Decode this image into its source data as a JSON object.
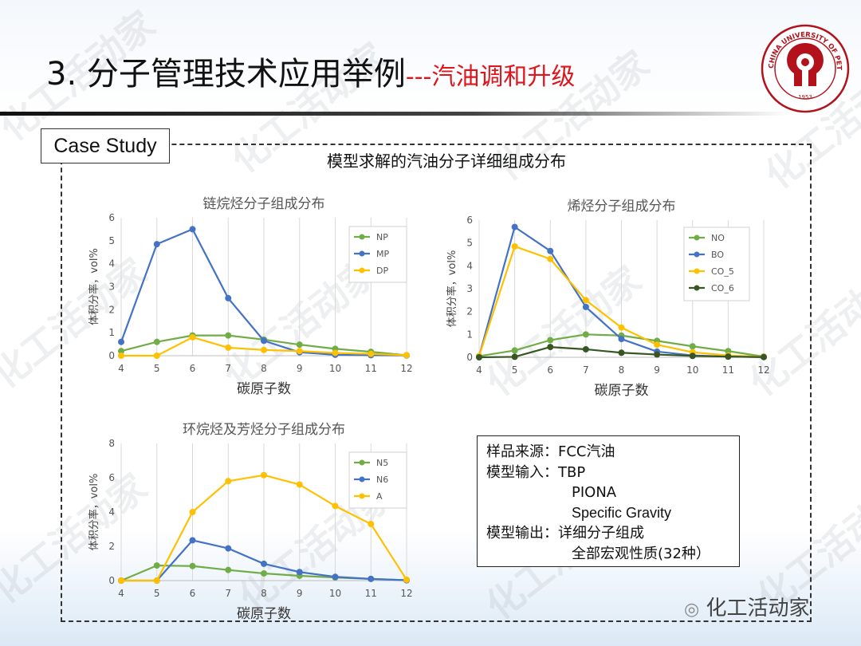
{
  "slide": {
    "title_main": "3. 分子管理技术应用举例",
    "title_sub": "---汽油调和升级",
    "case_label": "Case Study",
    "section_title": "模型求解的汽油分子详细组成分布",
    "watermark_text": "化工活动家",
    "footer_mark": "化工活动家",
    "logo_text": "CHINA UNIVERSITY OF PETROLEUM",
    "logo_year": "1953"
  },
  "info_box": {
    "lines": [
      "样品来源：FCC汽油",
      "模型输入：TBP",
      "PIONA",
      "Specific Gravity",
      "模型输出：详细分子组成",
      "全部宏观性质(32种）"
    ]
  },
  "chart_data": [
    {
      "type": "line",
      "title": "链烷烃分子组成分布",
      "xlabel": "碳原子数",
      "ylabel": "体积分率，vol%",
      "x": [
        4,
        5,
        6,
        7,
        8,
        9,
        10,
        11,
        12
      ],
      "xlim": [
        4,
        12
      ],
      "ylim": [
        0,
        6
      ],
      "yticks": [
        0,
        1,
        2,
        3,
        4,
        5,
        6
      ],
      "grid": "vertical",
      "legend": "right",
      "series": [
        {
          "name": "NP",
          "color": "#70ad47",
          "values": [
            0.2,
            0.6,
            0.88,
            0.88,
            0.7,
            0.48,
            0.3,
            0.17,
            0.02
          ]
        },
        {
          "name": "MP",
          "color": "#4472c4",
          "values": [
            0.6,
            4.85,
            5.5,
            2.5,
            0.65,
            0.15,
            0.04,
            0.02,
            0.01
          ]
        },
        {
          "name": "DP",
          "color": "#ffc000",
          "values": [
            0.0,
            0.0,
            0.8,
            0.35,
            0.25,
            0.2,
            0.12,
            0.08,
            0.02
          ]
        }
      ]
    },
    {
      "type": "line",
      "title": "烯烃分子组成分布",
      "xlabel": "碳原子数",
      "ylabel": "体积分率，vol%",
      "x": [
        4,
        5,
        6,
        7,
        8,
        9,
        10,
        11,
        12
      ],
      "xlim": [
        4,
        12
      ],
      "ylim": [
        0,
        6
      ],
      "yticks": [
        0,
        1,
        2,
        3,
        4,
        5,
        6
      ],
      "grid": "vertical",
      "legend": "right",
      "series": [
        {
          "name": "NO",
          "color": "#70ad47",
          "values": [
            0.05,
            0.3,
            0.75,
            1.0,
            0.95,
            0.72,
            0.48,
            0.27,
            0.03
          ]
        },
        {
          "name": "BO",
          "color": "#4472c4",
          "values": [
            0.05,
            5.7,
            4.65,
            2.2,
            0.8,
            0.25,
            0.08,
            0.03,
            0.01
          ]
        },
        {
          "name": "CO_5",
          "color": "#ffc000",
          "values": [
            0.05,
            4.85,
            4.3,
            2.5,
            1.3,
            0.55,
            0.22,
            0.08,
            0.02
          ]
        },
        {
          "name": "CO_6",
          "color": "#375623",
          "values": [
            0.0,
            0.02,
            0.45,
            0.35,
            0.2,
            0.12,
            0.06,
            0.03,
            0.01
          ]
        }
      ]
    },
    {
      "type": "line",
      "title": "环烷烃及芳烃分子组成分布",
      "xlabel": "碳原子数",
      "ylabel": "体积分率，vol%",
      "x": [
        4,
        5,
        6,
        7,
        8,
        9,
        10,
        11,
        12
      ],
      "xlim": [
        4,
        12
      ],
      "ylim": [
        0,
        8
      ],
      "yticks": [
        0,
        2,
        4,
        6,
        8
      ],
      "grid": "vertical",
      "legend": "right",
      "series": [
        {
          "name": "N5",
          "color": "#70ad47",
          "values": [
            0.0,
            0.88,
            0.85,
            0.62,
            0.42,
            0.28,
            0.18,
            0.1,
            0.02
          ]
        },
        {
          "name": "N6",
          "color": "#4472c4",
          "values": [
            0.0,
            0.0,
            2.35,
            1.88,
            0.98,
            0.5,
            0.22,
            0.1,
            0.02
          ]
        },
        {
          "name": "A",
          "color": "#ffc000",
          "values": [
            0.0,
            0.0,
            4.0,
            5.8,
            6.15,
            5.6,
            4.35,
            3.3,
            0.05
          ]
        }
      ]
    }
  ]
}
